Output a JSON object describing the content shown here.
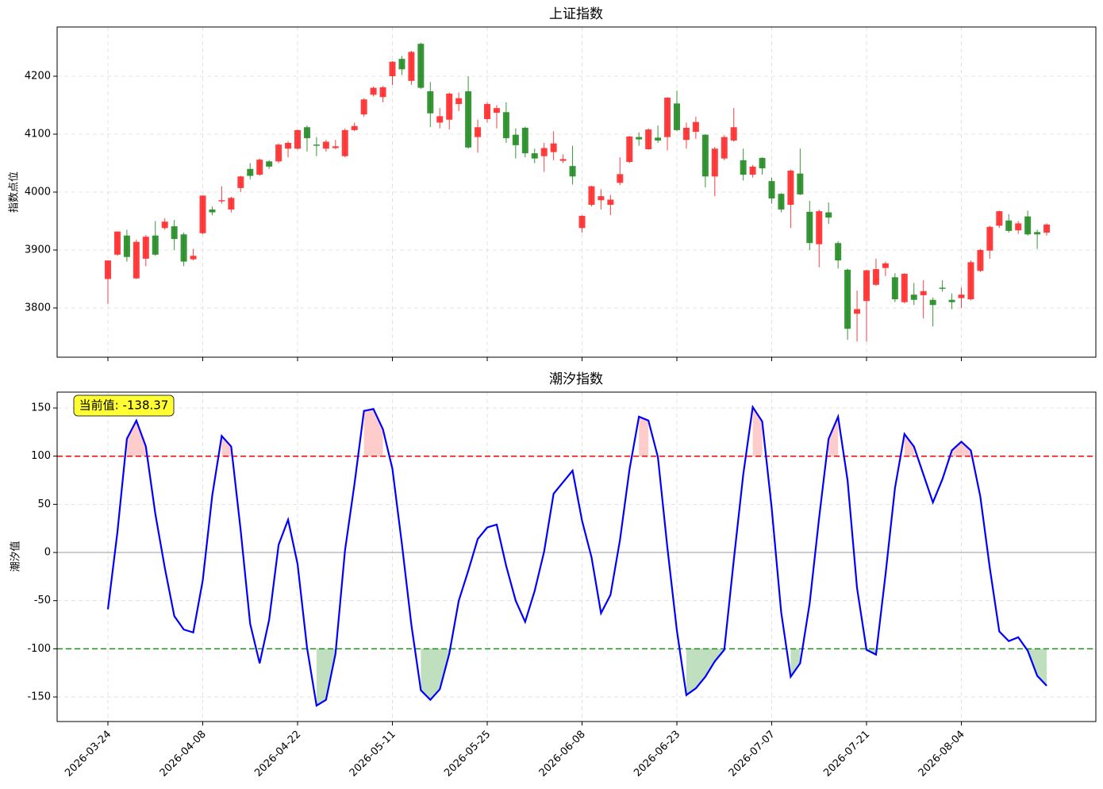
{
  "chart_data": [
    {
      "type": "candlestick",
      "title": "上证指数",
      "ylabel": "指数点位",
      "open": [
        3850,
        3892,
        3925,
        3851,
        3885,
        3925,
        3938,
        3941,
        3927,
        3884,
        3929,
        3970,
        3984,
        3970,
        4007,
        4040,
        4030,
        4053,
        4053,
        4075,
        4075,
        4112,
        4082,
        4075,
        4076,
        4062,
        4107,
        4134,
        4168,
        4164,
        4200,
        4230,
        4192,
        4256,
        4174,
        4120,
        4125,
        4152,
        4174,
        4095,
        4126,
        4137,
        4138,
        4099,
        4111,
        4067,
        4062,
        4069,
        4054,
        4045,
        3938,
        3978,
        3986,
        3978,
        4016,
        4052,
        4095,
        4074,
        4094,
        4095,
        4153,
        4090,
        4104,
        4099,
        4027,
        4058,
        4089,
        4055,
        4030,
        4059,
        4019,
        3997,
        3978,
        4032,
        3966,
        3910,
        3965,
        3912,
        3866,
        3790,
        3812,
        3840,
        3869,
        3853,
        3810,
        3823,
        3822,
        3814,
        3835,
        3814,
        3817,
        3815,
        3864,
        3899,
        3942,
        3951,
        3934,
        3958,
        3931,
        3930
      ],
      "high": [
        3882,
        3932,
        3935,
        3918,
        3926,
        3950,
        3955,
        3952,
        3930,
        3902,
        3994,
        3975,
        4010,
        3992,
        4028,
        4050,
        4058,
        4055,
        4084,
        4088,
        4108,
        4115,
        4095,
        4090,
        4090,
        4110,
        4120,
        4162,
        4182,
        4183,
        4226,
        4235,
        4244,
        4258,
        4190,
        4145,
        4172,
        4172,
        4200,
        4125,
        4155,
        4150,
        4155,
        4110,
        4113,
        4075,
        4085,
        4105,
        4065,
        4080,
        3960,
        4011,
        4005,
        3995,
        4060,
        4097,
        4103,
        4110,
        4115,
        4164,
        4175,
        4120,
        4130,
        4100,
        4078,
        4098,
        4145,
        4075,
        4047,
        4060,
        4025,
        3998,
        4039,
        4075,
        3985,
        3970,
        3982,
        3915,
        3868,
        3830,
        3866,
        3885,
        3880,
        3860,
        3860,
        3843,
        3848,
        3818,
        3848,
        3825,
        3835,
        3882,
        3902,
        3942,
        3968,
        3962,
        3950,
        3968,
        3935,
        3946
      ],
      "low": [
        3807,
        3890,
        3880,
        3850,
        3872,
        3890,
        3935,
        3900,
        3872,
        3882,
        3927,
        3960,
        3980,
        3965,
        4000,
        4022,
        4028,
        4040,
        4050,
        4060,
        4073,
        4070,
        4062,
        4070,
        4074,
        4060,
        4105,
        4130,
        4165,
        4155,
        4185,
        4202,
        4185,
        4178,
        4112,
        4110,
        4108,
        4140,
        4075,
        4068,
        4120,
        4110,
        4085,
        4058,
        4060,
        4050,
        4035,
        4055,
        4050,
        4013,
        3930,
        3975,
        3970,
        3960,
        4012,
        4050,
        4080,
        4073,
        4085,
        4072,
        4105,
        4075,
        4092,
        4008,
        3993,
        4055,
        4087,
        4020,
        4025,
        4030,
        3980,
        3965,
        3938,
        3995,
        3900,
        3870,
        3945,
        3868,
        3745,
        3742,
        3742,
        3838,
        3855,
        3810,
        3808,
        3805,
        3782,
        3768,
        3828,
        3798,
        3800,
        3813,
        3862,
        3885,
        3938,
        3930,
        3928,
        3925,
        3902,
        3925
      ],
      "close": [
        3882,
        3932,
        3888,
        3914,
        3923,
        3892,
        3949,
        3919,
        3880,
        3890,
        3994,
        3965,
        3986,
        3990,
        4027,
        4028,
        4056,
        4044,
        4082,
        4085,
        4107,
        4093,
        4080,
        4087,
        4079,
        4107,
        4114,
        4160,
        4180,
        4181,
        4225,
        4212,
        4242,
        4180,
        4136,
        4131,
        4170,
        4162,
        4077,
        4112,
        4152,
        4145,
        4093,
        4081,
        4067,
        4058,
        4076,
        4084,
        4057,
        4027,
        3959,
        4010,
        3993,
        3987,
        4031,
        4096,
        4091,
        4108,
        4089,
        4163,
        4107,
        4111,
        4121,
        4027,
        4075,
        4095,
        4112,
        4030,
        4044,
        4041,
        3989,
        3970,
        4037,
        3996,
        3912,
        3967,
        3956,
        3882,
        3764,
        3798,
        3865,
        3867,
        3877,
        3815,
        3859,
        3814,
        3829,
        3805,
        3833,
        3810,
        3823,
        3879,
        3900,
        3940,
        3967,
        3933,
        3946,
        3927,
        3927,
        3944
      ],
      "ylim": [
        3715,
        4285
      ],
      "yticks": [
        3800,
        3900,
        4000,
        4100,
        4200
      ],
      "grid": true,
      "up_color": "#ff2a2a",
      "down_color": "#228b22"
    },
    {
      "type": "line",
      "title": "潮汐指数",
      "ylabel": "潮汐值",
      "categories": [
        "2026-03-24",
        null,
        null,
        null,
        null,
        null,
        null,
        null,
        null,
        null,
        "2026-04-08",
        null,
        null,
        null,
        null,
        null,
        null,
        null,
        null,
        null,
        "2026-04-22",
        null,
        null,
        null,
        null,
        null,
        null,
        null,
        null,
        null,
        "2026-05-11",
        null,
        null,
        null,
        null,
        null,
        null,
        null,
        null,
        null,
        "2026-05-25",
        null,
        null,
        null,
        null,
        null,
        null,
        null,
        null,
        null,
        "2026-06-08",
        null,
        null,
        null,
        null,
        null,
        null,
        null,
        null,
        null,
        "2026-06-23",
        null,
        null,
        null,
        null,
        null,
        null,
        null,
        null,
        null,
        "2026-07-07",
        null,
        null,
        null,
        null,
        null,
        null,
        null,
        null,
        null,
        "2026-07-21",
        null,
        null,
        null,
        null,
        null,
        null,
        null,
        null,
        null,
        "2026-08-04",
        null,
        null,
        null,
        null,
        null,
        null,
        null,
        null,
        null
      ],
      "values": [
        -59,
        21,
        118,
        137,
        110,
        40,
        -16,
        -66,
        -80,
        -83,
        -29,
        59,
        121,
        110,
        23,
        -74,
        -115,
        -70,
        8,
        34,
        -12,
        -99,
        -159,
        -153,
        -105,
        2,
        71,
        147,
        149,
        128,
        87,
        9,
        -75,
        -143,
        -153,
        -142,
        -105,
        -50,
        -19,
        14,
        26,
        29,
        -14,
        -50,
        -72,
        -40,
        1,
        61,
        73,
        85,
        33,
        -5,
        -63,
        -44,
        13,
        86,
        141,
        137,
        99,
        5,
        -81,
        -148,
        -141,
        -129,
        -113,
        -101,
        -8,
        81,
        151,
        136,
        46,
        -62,
        -129,
        -115,
        -53,
        36,
        118,
        141,
        75,
        -37,
        -101,
        -106,
        -23,
        67,
        123,
        110,
        81,
        52,
        76,
        106,
        115,
        106,
        58,
        -16,
        -82,
        -92,
        -88,
        -102,
        -128,
        -138.37
      ],
      "color": "#0000ff",
      "reference_lines": [
        {
          "value": 100,
          "color": "#ff0000",
          "fill": "#ff9999",
          "side": "above"
        },
        {
          "value": -100,
          "color": "#228b22",
          "fill": "#80c080",
          "side": "below"
        },
        {
          "value": 0,
          "color": "#999999"
        }
      ],
      "annotation": "当前值: -138.37",
      "ylim": [
        -175.5,
        166.5
      ],
      "yticks": [
        -150,
        -100,
        -50,
        0,
        50,
        100,
        150
      ],
      "grid": true
    }
  ]
}
